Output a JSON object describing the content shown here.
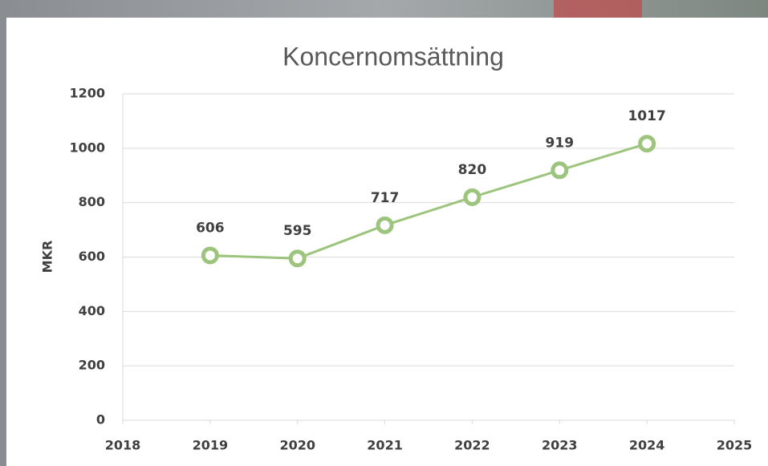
{
  "chart_data": {
    "type": "line",
    "title": "Koncernomsättning",
    "y_label": "MKR",
    "x": [
      2019,
      2020,
      2021,
      2022,
      2023,
      2024
    ],
    "values": [
      606,
      595,
      717,
      820,
      919,
      1017
    ],
    "color": "#9cc47c",
    "xlim": [
      2018,
      2025
    ],
    "xticks": [
      2018,
      2019,
      2020,
      2021,
      2022,
      2023,
      2024,
      2025
    ],
    "ylim": [
      0,
      1200
    ],
    "yticks": [
      0,
      200,
      400,
      600,
      800,
      1000,
      1200
    ],
    "grid": true
  }
}
